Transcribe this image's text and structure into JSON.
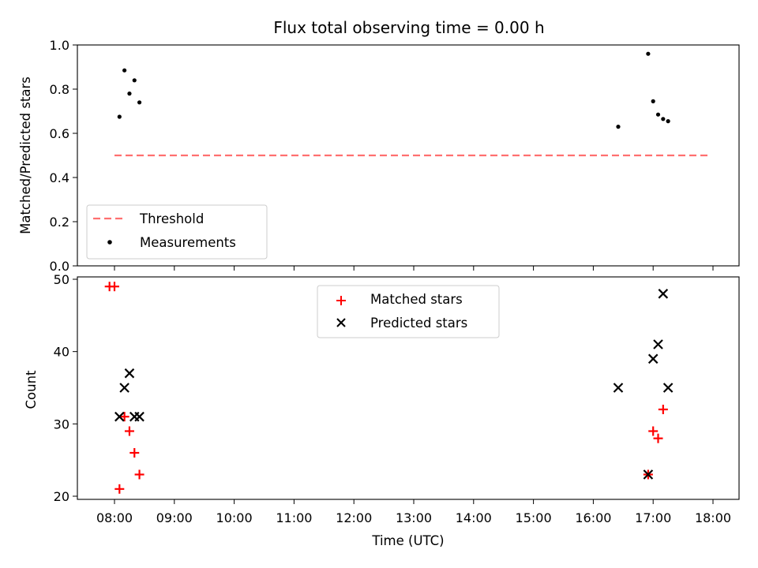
{
  "chart_data": [
    {
      "type": "scatter",
      "title": "Flux total observing time = 0.00 h",
      "xlabel": "",
      "ylabel": "Matched/Predicted stars",
      "ylim": [
        0,
        1.0
      ],
      "yticks": [
        "0.0",
        "0.2",
        "0.4",
        "0.6",
        "0.8",
        "1.0"
      ],
      "legend_position": "lower-left",
      "series": [
        {
          "name": "Threshold",
          "style": "dashed-line",
          "color": "#ff7070",
          "x": [
            "08:00",
            "17:55"
          ],
          "y": [
            0.5,
            0.5
          ]
        },
        {
          "name": "Measurements",
          "style": "dot",
          "color": "#000000",
          "x": [
            "08:05",
            "08:10",
            "08:15",
            "08:20",
            "08:25",
            "16:25",
            "16:55",
            "17:00",
            "17:05",
            "17:10",
            "17:15"
          ],
          "y": [
            0.675,
            0.885,
            0.78,
            0.84,
            0.74,
            0.63,
            0.96,
            0.745,
            0.685,
            0.665,
            0.655
          ]
        }
      ]
    },
    {
      "type": "scatter",
      "title": "",
      "xlabel": "Time (UTC)",
      "ylabel": "Count",
      "ylim": [
        20,
        50
      ],
      "yticks": [
        "20",
        "30",
        "40",
        "50"
      ],
      "xticks": [
        "08:00",
        "09:00",
        "10:00",
        "11:00",
        "12:00",
        "13:00",
        "14:00",
        "15:00",
        "16:00",
        "17:00",
        "18:00"
      ],
      "legend_position": "upper-center",
      "series": [
        {
          "name": "Matched stars",
          "style": "plus",
          "color": "#ff0000",
          "x": [
            "07:55",
            "08:00",
            "08:05",
            "08:10",
            "08:15",
            "08:20",
            "08:25",
            "16:55",
            "17:00",
            "17:05",
            "17:10"
          ],
          "y": [
            49,
            49,
            21,
            31,
            29,
            26,
            23,
            23,
            29,
            28,
            32
          ]
        },
        {
          "name": "Predicted stars",
          "style": "x",
          "color": "#000000",
          "x": [
            "08:05",
            "08:10",
            "08:15",
            "08:20",
            "08:25",
            "16:25",
            "16:55",
            "17:00",
            "17:05",
            "17:10",
            "17:15"
          ],
          "y": [
            31,
            35,
            37,
            31,
            31,
            35,
            23,
            39,
            41,
            48,
            35
          ]
        }
      ]
    }
  ]
}
